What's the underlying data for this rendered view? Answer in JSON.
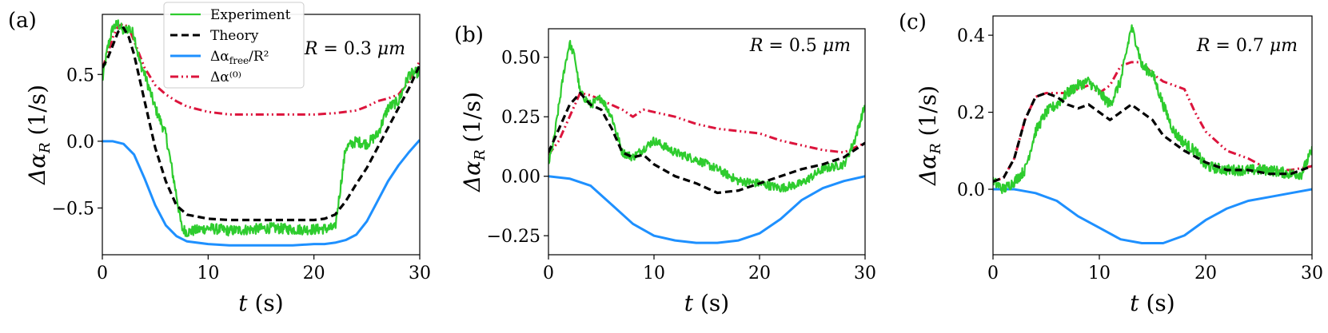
{
  "legend": {
    "entries": [
      {
        "key": "experiment",
        "label": "Experiment",
        "color": "#2ecc2e",
        "dash": "solid"
      },
      {
        "key": "theory",
        "label": "Theory",
        "color": "#000000",
        "dash": "dashed"
      },
      {
        "key": "free",
        "label": "Δα_free/R²",
        "color": "#1e90ff",
        "dash": "solid"
      },
      {
        "key": "zero",
        "label": "Δα⁽⁰⁾",
        "color": "#dc143c",
        "dash": "dashdot"
      }
    ]
  },
  "chart_data": [
    {
      "type": "line",
      "panel_label": "(a)",
      "annotation": "R = 0.3 μm",
      "xlabel": "t (s)",
      "ylabel": "Δα_R (1/s)",
      "xlim": [
        0,
        30
      ],
      "ylim": [
        -0.85,
        0.95
      ],
      "xticks": [
        0,
        10,
        20,
        30
      ],
      "xtick_labels": [
        "0",
        "10",
        "20",
        "30"
      ],
      "yticks": [
        -0.5,
        0.0,
        0.5
      ],
      "ytick_labels": [
        "−0.5",
        "0.0",
        "0.5"
      ],
      "series": [
        {
          "name": "Experiment",
          "noise": 0.04,
          "x": [
            0,
            0.5,
            1,
            1.5,
            2,
            2.5,
            3,
            3.5,
            4,
            5,
            6,
            7,
            7.5,
            8,
            10,
            12,
            14,
            16,
            18,
            20,
            22,
            22.5,
            23,
            24,
            25,
            26,
            27,
            28,
            29,
            30
          ],
          "y": [
            0.45,
            0.7,
            0.85,
            0.88,
            0.82,
            0.85,
            0.8,
            0.6,
            0.5,
            0.25,
            0.05,
            -0.4,
            -0.65,
            -0.68,
            -0.65,
            -0.67,
            -0.66,
            -0.65,
            -0.66,
            -0.66,
            -0.65,
            -0.35,
            -0.05,
            0.0,
            -0.02,
            0.05,
            0.25,
            0.3,
            0.5,
            0.52
          ]
        },
        {
          "name": "Theory",
          "x": [
            0,
            0.5,
            1,
            1.5,
            2,
            2.5,
            3,
            4,
            5,
            6,
            7,
            8,
            10,
            12,
            14,
            16,
            18,
            20,
            21,
            22,
            23,
            24,
            25,
            26,
            27,
            28,
            29,
            30
          ],
          "y": [
            0.55,
            0.62,
            0.72,
            0.82,
            0.85,
            0.78,
            0.65,
            0.3,
            -0.05,
            -0.3,
            -0.48,
            -0.55,
            -0.58,
            -0.59,
            -0.59,
            -0.59,
            -0.59,
            -0.59,
            -0.58,
            -0.55,
            -0.45,
            -0.32,
            -0.2,
            -0.05,
            0.1,
            0.25,
            0.4,
            0.57
          ]
        },
        {
          "name": "Δα_free/R²",
          "x": [
            0,
            1,
            2,
            3,
            4,
            5,
            6,
            7,
            8,
            10,
            12,
            15,
            18,
            20,
            21,
            22,
            23,
            24,
            25,
            26,
            27,
            28,
            29,
            30
          ],
          "y": [
            0.0,
            0.0,
            -0.02,
            -0.1,
            -0.28,
            -0.48,
            -0.63,
            -0.71,
            -0.75,
            -0.77,
            -0.78,
            -0.78,
            -0.78,
            -0.77,
            -0.77,
            -0.76,
            -0.74,
            -0.7,
            -0.6,
            -0.45,
            -0.3,
            -0.18,
            -0.08,
            0.01
          ]
        },
        {
          "name": "Δα⁽⁰⁾",
          "x": [
            0,
            0.5,
            1,
            1.5,
            2,
            2.5,
            3,
            4,
            5,
            6,
            7,
            8,
            10,
            12,
            15,
            18,
            20,
            22,
            24,
            25,
            26,
            27,
            28,
            29,
            30
          ],
          "y": [
            0.55,
            0.65,
            0.78,
            0.86,
            0.88,
            0.85,
            0.75,
            0.55,
            0.42,
            0.35,
            0.3,
            0.26,
            0.22,
            0.2,
            0.2,
            0.2,
            0.2,
            0.21,
            0.23,
            0.26,
            0.3,
            0.32,
            0.35,
            0.45,
            0.6
          ]
        }
      ]
    },
    {
      "type": "line",
      "panel_label": "(b)",
      "annotation": "R = 0.5 μm",
      "xlabel": "t (s)",
      "ylabel": "Δα_R (1/s)",
      "xlim": [
        0,
        30
      ],
      "ylim": [
        -0.33,
        0.62
      ],
      "xticks": [
        0,
        10,
        20,
        30
      ],
      "xtick_labels": [
        "0",
        "10",
        "20",
        "30"
      ],
      "yticks": [
        -0.25,
        0.0,
        0.25,
        0.5
      ],
      "ytick_labels": [
        "−0.25",
        "0.00",
        "0.25",
        "0.50"
      ],
      "series": [
        {
          "name": "Experiment",
          "noise": 0.018,
          "x": [
            0,
            0.5,
            1,
            1.5,
            2,
            2.5,
            3,
            4,
            5,
            6,
            7,
            8,
            10,
            12,
            14,
            16,
            18,
            20,
            22,
            24,
            26,
            28,
            29,
            30
          ],
          "y": [
            0.05,
            0.15,
            0.3,
            0.45,
            0.56,
            0.5,
            0.35,
            0.3,
            0.33,
            0.25,
            0.1,
            0.08,
            0.15,
            0.1,
            0.07,
            0.03,
            -0.02,
            -0.03,
            -0.05,
            -0.03,
            0.03,
            0.05,
            0.15,
            0.3
          ]
        },
        {
          "name": "Theory",
          "x": [
            0,
            1,
            2,
            3,
            4,
            5,
            6,
            7,
            8,
            9,
            10,
            12,
            14,
            16,
            18,
            20,
            22,
            24,
            26,
            28,
            30
          ],
          "y": [
            0.1,
            0.2,
            0.3,
            0.35,
            0.3,
            0.28,
            0.2,
            0.1,
            0.08,
            0.09,
            0.05,
            0.0,
            -0.03,
            -0.07,
            -0.06,
            -0.03,
            0.0,
            0.03,
            0.05,
            0.08,
            0.14
          ]
        },
        {
          "name": "Δα_free/R²",
          "x": [
            0,
            2,
            4,
            6,
            8,
            10,
            12,
            14,
            15,
            16,
            18,
            20,
            22,
            24,
            26,
            28,
            30
          ],
          "y": [
            0.0,
            -0.01,
            -0.04,
            -0.12,
            -0.2,
            -0.25,
            -0.27,
            -0.28,
            -0.28,
            -0.28,
            -0.27,
            -0.24,
            -0.18,
            -0.1,
            -0.05,
            -0.02,
            0.0
          ]
        },
        {
          "name": "Δα⁽⁰⁾",
          "x": [
            0,
            1,
            2,
            3,
            4,
            5,
            6,
            7,
            8,
            9,
            10,
            12,
            14,
            16,
            18,
            20,
            22,
            24,
            26,
            28,
            30
          ],
          "y": [
            0.09,
            0.15,
            0.25,
            0.35,
            0.34,
            0.32,
            0.3,
            0.28,
            0.25,
            0.28,
            0.27,
            0.25,
            0.22,
            0.2,
            0.19,
            0.18,
            0.15,
            0.13,
            0.11,
            0.1,
            0.14
          ]
        }
      ]
    },
    {
      "type": "line",
      "panel_label": "(c)",
      "annotation": "R = 0.7 μm",
      "xlabel": "t (s)",
      "ylabel": "Δα_R (1/s)",
      "xlim": [
        0,
        30
      ],
      "ylim": [
        -0.17,
        0.45
      ],
      "xticks": [
        0,
        10,
        20,
        30
      ],
      "xtick_labels": [
        "0",
        "10",
        "20",
        "30"
      ],
      "yticks": [
        0.0,
        0.2,
        0.4
      ],
      "ytick_labels": [
        "0.0",
        "0.2",
        "0.4"
      ],
      "series": [
        {
          "name": "Experiment",
          "noise": 0.014,
          "x": [
            0,
            1,
            2,
            3,
            4,
            5,
            6,
            7,
            8,
            9,
            10,
            11,
            12,
            12.5,
            13,
            13.5,
            14,
            15,
            16,
            17,
            18,
            19,
            20,
            22,
            24,
            26,
            28,
            29,
            30
          ],
          "y": [
            0.02,
            0.0,
            0.02,
            0.05,
            0.15,
            0.2,
            0.22,
            0.25,
            0.27,
            0.28,
            0.25,
            0.22,
            0.28,
            0.35,
            0.42,
            0.38,
            0.32,
            0.3,
            0.22,
            0.15,
            0.12,
            0.1,
            0.06,
            0.05,
            0.05,
            0.05,
            0.04,
            0.04,
            0.1
          ]
        },
        {
          "name": "Theory",
          "x": [
            0,
            1,
            2,
            3,
            4,
            5,
            6,
            7,
            8,
            9,
            10,
            11,
            12,
            13,
            14,
            15,
            16,
            18,
            20,
            22,
            24,
            26,
            28,
            30
          ],
          "y": [
            0.02,
            0.03,
            0.08,
            0.18,
            0.24,
            0.25,
            0.24,
            0.22,
            0.21,
            0.22,
            0.2,
            0.18,
            0.2,
            0.22,
            0.2,
            0.18,
            0.14,
            0.1,
            0.07,
            0.05,
            0.05,
            0.04,
            0.04,
            0.06
          ]
        },
        {
          "name": "Δα_free/R²",
          "x": [
            0,
            2,
            4,
            6,
            8,
            10,
            12,
            14,
            15,
            16,
            18,
            20,
            22,
            24,
            26,
            28,
            30
          ],
          "y": [
            0.0,
            0.0,
            -0.01,
            -0.03,
            -0.07,
            -0.1,
            -0.13,
            -0.14,
            -0.14,
            -0.14,
            -0.12,
            -0.08,
            -0.05,
            -0.03,
            -0.02,
            -0.01,
            0.0
          ]
        },
        {
          "name": "Δα⁽⁰⁾",
          "x": [
            0,
            1,
            2,
            3,
            4,
            5,
            6,
            7,
            8,
            9,
            10,
            11,
            12,
            13,
            14,
            15,
            16,
            17,
            18,
            19,
            20,
            22,
            24,
            26,
            28,
            30
          ],
          "y": [
            0.02,
            0.03,
            0.08,
            0.18,
            0.24,
            0.25,
            0.25,
            0.25,
            0.26,
            0.27,
            0.25,
            0.27,
            0.32,
            0.33,
            0.33,
            0.3,
            0.28,
            0.27,
            0.26,
            0.2,
            0.15,
            0.1,
            0.08,
            0.05,
            0.05,
            0.06
          ]
        }
      ]
    }
  ]
}
